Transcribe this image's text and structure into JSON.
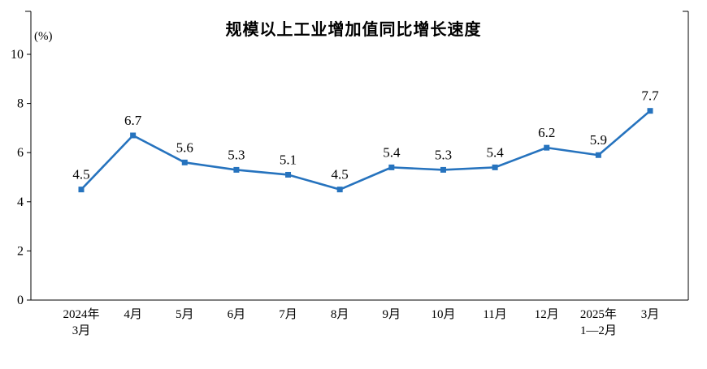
{
  "chart": {
    "title": "规模以上工业增加值同比增长速度",
    "unit_label": "(%)"
  },
  "chart_data": {
    "type": "line",
    "title": "规模以上工业增加值同比增长速度",
    "ylabel": "(%)",
    "xlabel": "",
    "categories": [
      "2024年\n3月",
      "4月",
      "5月",
      "6月",
      "7月",
      "8月",
      "9月",
      "10月",
      "11月",
      "12月",
      "2025年\n1—2月",
      "3月"
    ],
    "values": [
      4.5,
      6.7,
      5.6,
      5.3,
      5.1,
      4.5,
      5.4,
      5.3,
      5.4,
      6.2,
      5.9,
      7.7
    ],
    "ylim": [
      0,
      10
    ],
    "yticks": [
      0,
      2,
      4,
      6,
      8,
      10
    ],
    "line_color": "#2673BE",
    "marker": "square",
    "grid": false,
    "legend": "none"
  }
}
